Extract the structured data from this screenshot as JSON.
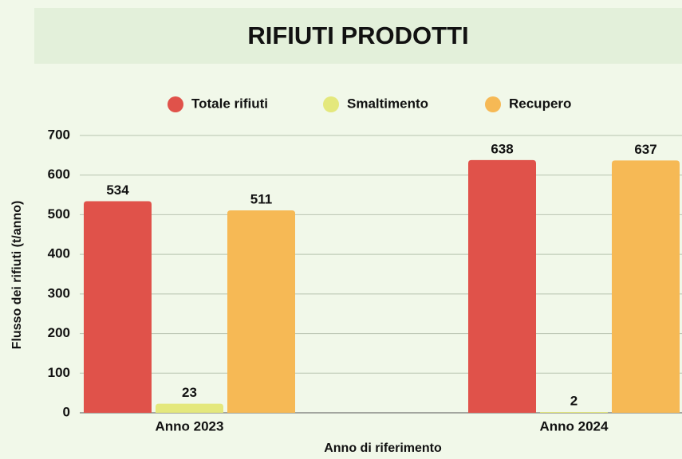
{
  "chart_data": {
    "type": "bar",
    "title": "RIFIUTI PRODOTTI",
    "categories": [
      "Anno 2023",
      "Anno 2024"
    ],
    "series": [
      {
        "name": "Totale rifiuti",
        "color": "#e0524a",
        "values": [
          534,
          638
        ]
      },
      {
        "name": "Smaltimento",
        "color": "#e4e87c",
        "values": [
          23,
          2
        ]
      },
      {
        "name": "Recupero",
        "color": "#f6b955",
        "values": [
          511,
          637
        ]
      }
    ],
    "x_label": "Anno di riferimento",
    "y_label": "Flusso dei rifiuti (t/anno)",
    "ylim": [
      0,
      700
    ],
    "yticks": [
      0,
      100,
      200,
      300,
      400,
      500,
      600,
      700
    ],
    "grid": true,
    "legend": "top"
  }
}
